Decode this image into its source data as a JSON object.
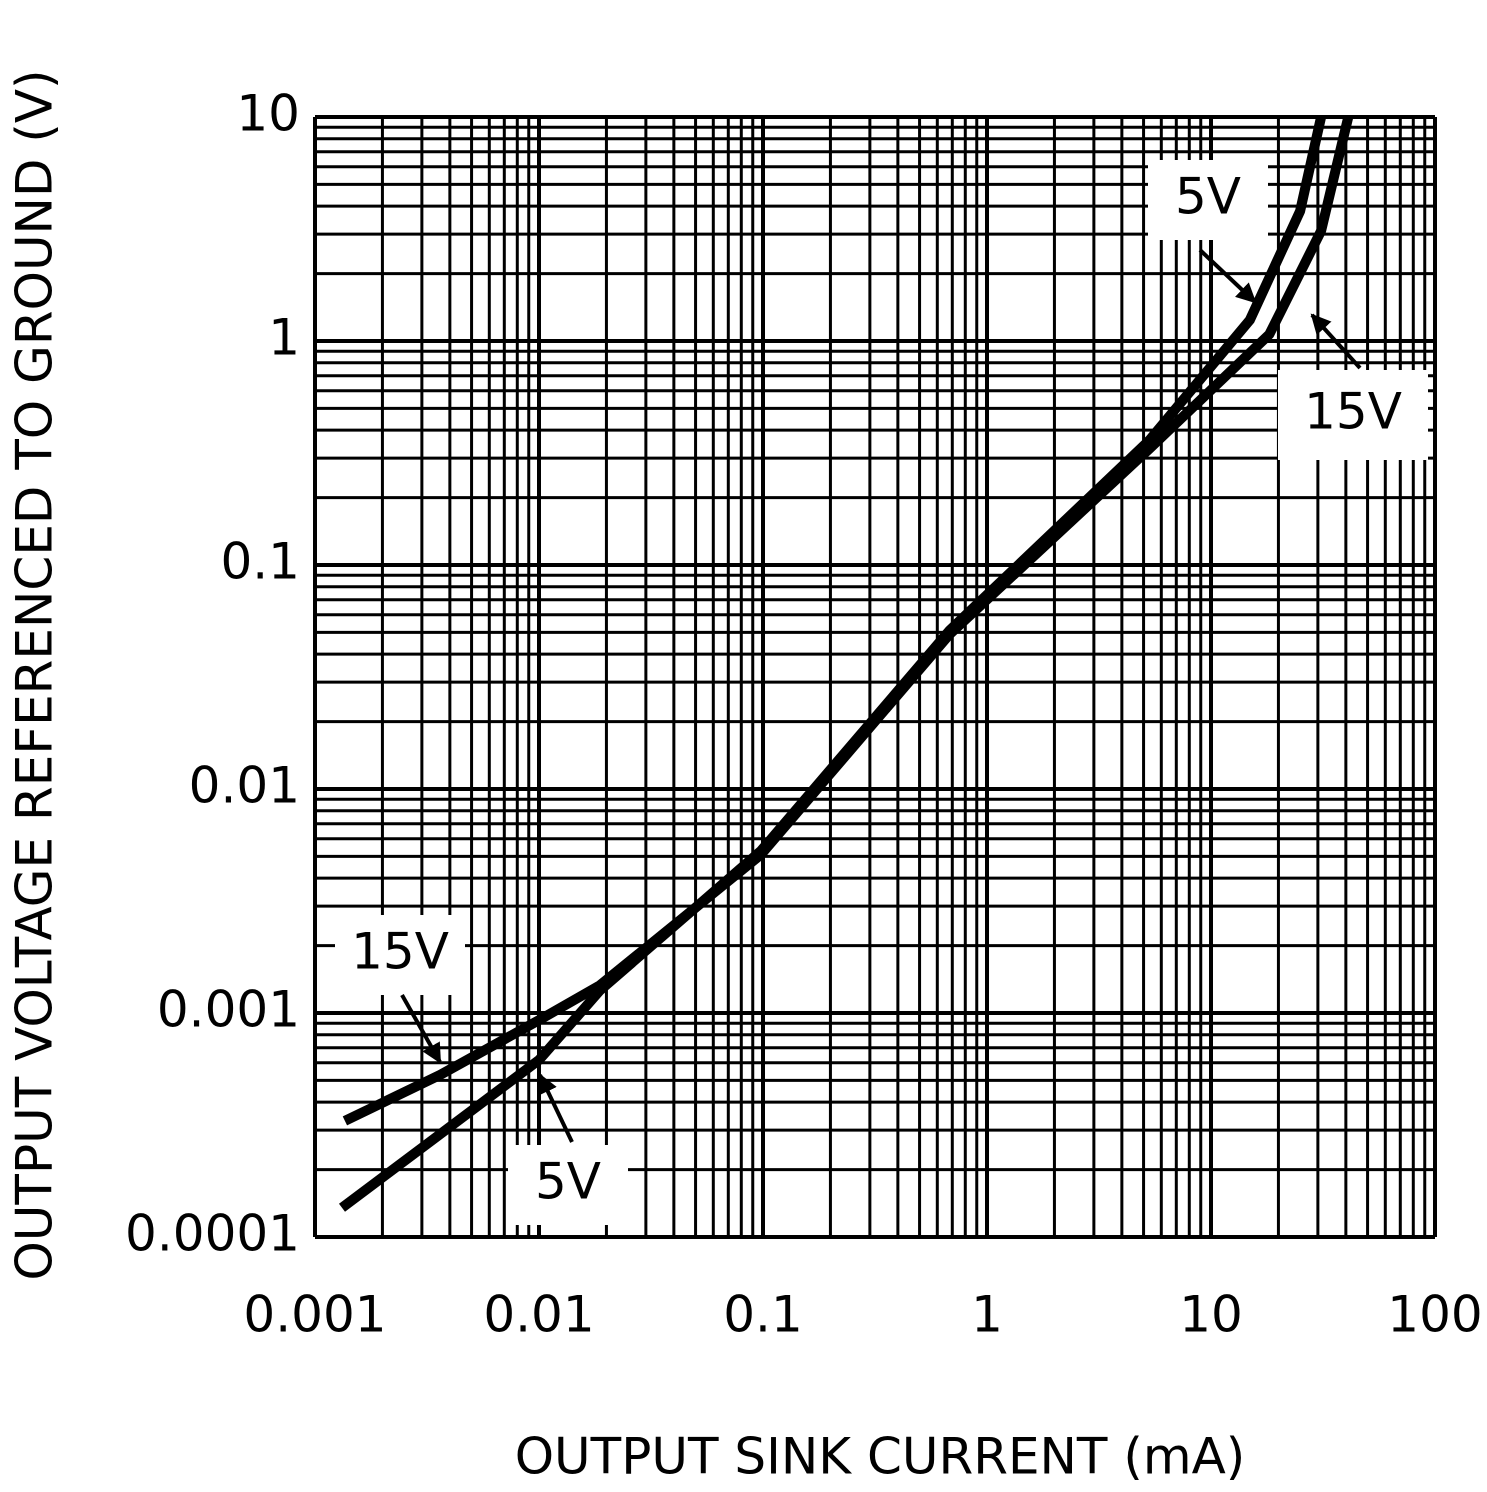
{
  "chart_data": {
    "type": "line",
    "x_label": "OUTPUT SINK CURRENT (mA)",
    "y_label": "OUTPUT VOLTAGE REFERENCED TO GROUND (V)",
    "xscale": "log",
    "yscale": "log",
    "grid": true,
    "xlim": [
      0.001,
      100
    ],
    "ylim": [
      0.0001,
      10
    ],
    "xticks": [
      0.001,
      0.01,
      0.1,
      1,
      10,
      100
    ],
    "yticks": [
      0.0001,
      0.001,
      0.01,
      0.1,
      1,
      10
    ],
    "series": [
      {
        "name": "5V",
        "color": "#000000",
        "x": [
          0.00132,
          0.01,
          0.0187,
          0.098,
          0.68,
          5.3,
          14.9,
          25,
          31
        ],
        "values": [
          0.000135,
          0.000617,
          0.00126,
          0.0053,
          0.051,
          0.36,
          1.24,
          3.8,
          10
        ]
      },
      {
        "name": "15V",
        "color": "#000000",
        "x": [
          0.00136,
          0.00363,
          0.01,
          0.0187,
          0.098,
          0.68,
          5.3,
          18.2,
          31,
          41
        ],
        "values": [
          0.00033,
          0.00053,
          0.00093,
          0.00133,
          0.0051,
          0.049,
          0.33,
          1.07,
          3.1,
          10
        ]
      }
    ],
    "annotations": [
      "5V",
      "15V",
      "15V",
      "5V"
    ]
  }
}
